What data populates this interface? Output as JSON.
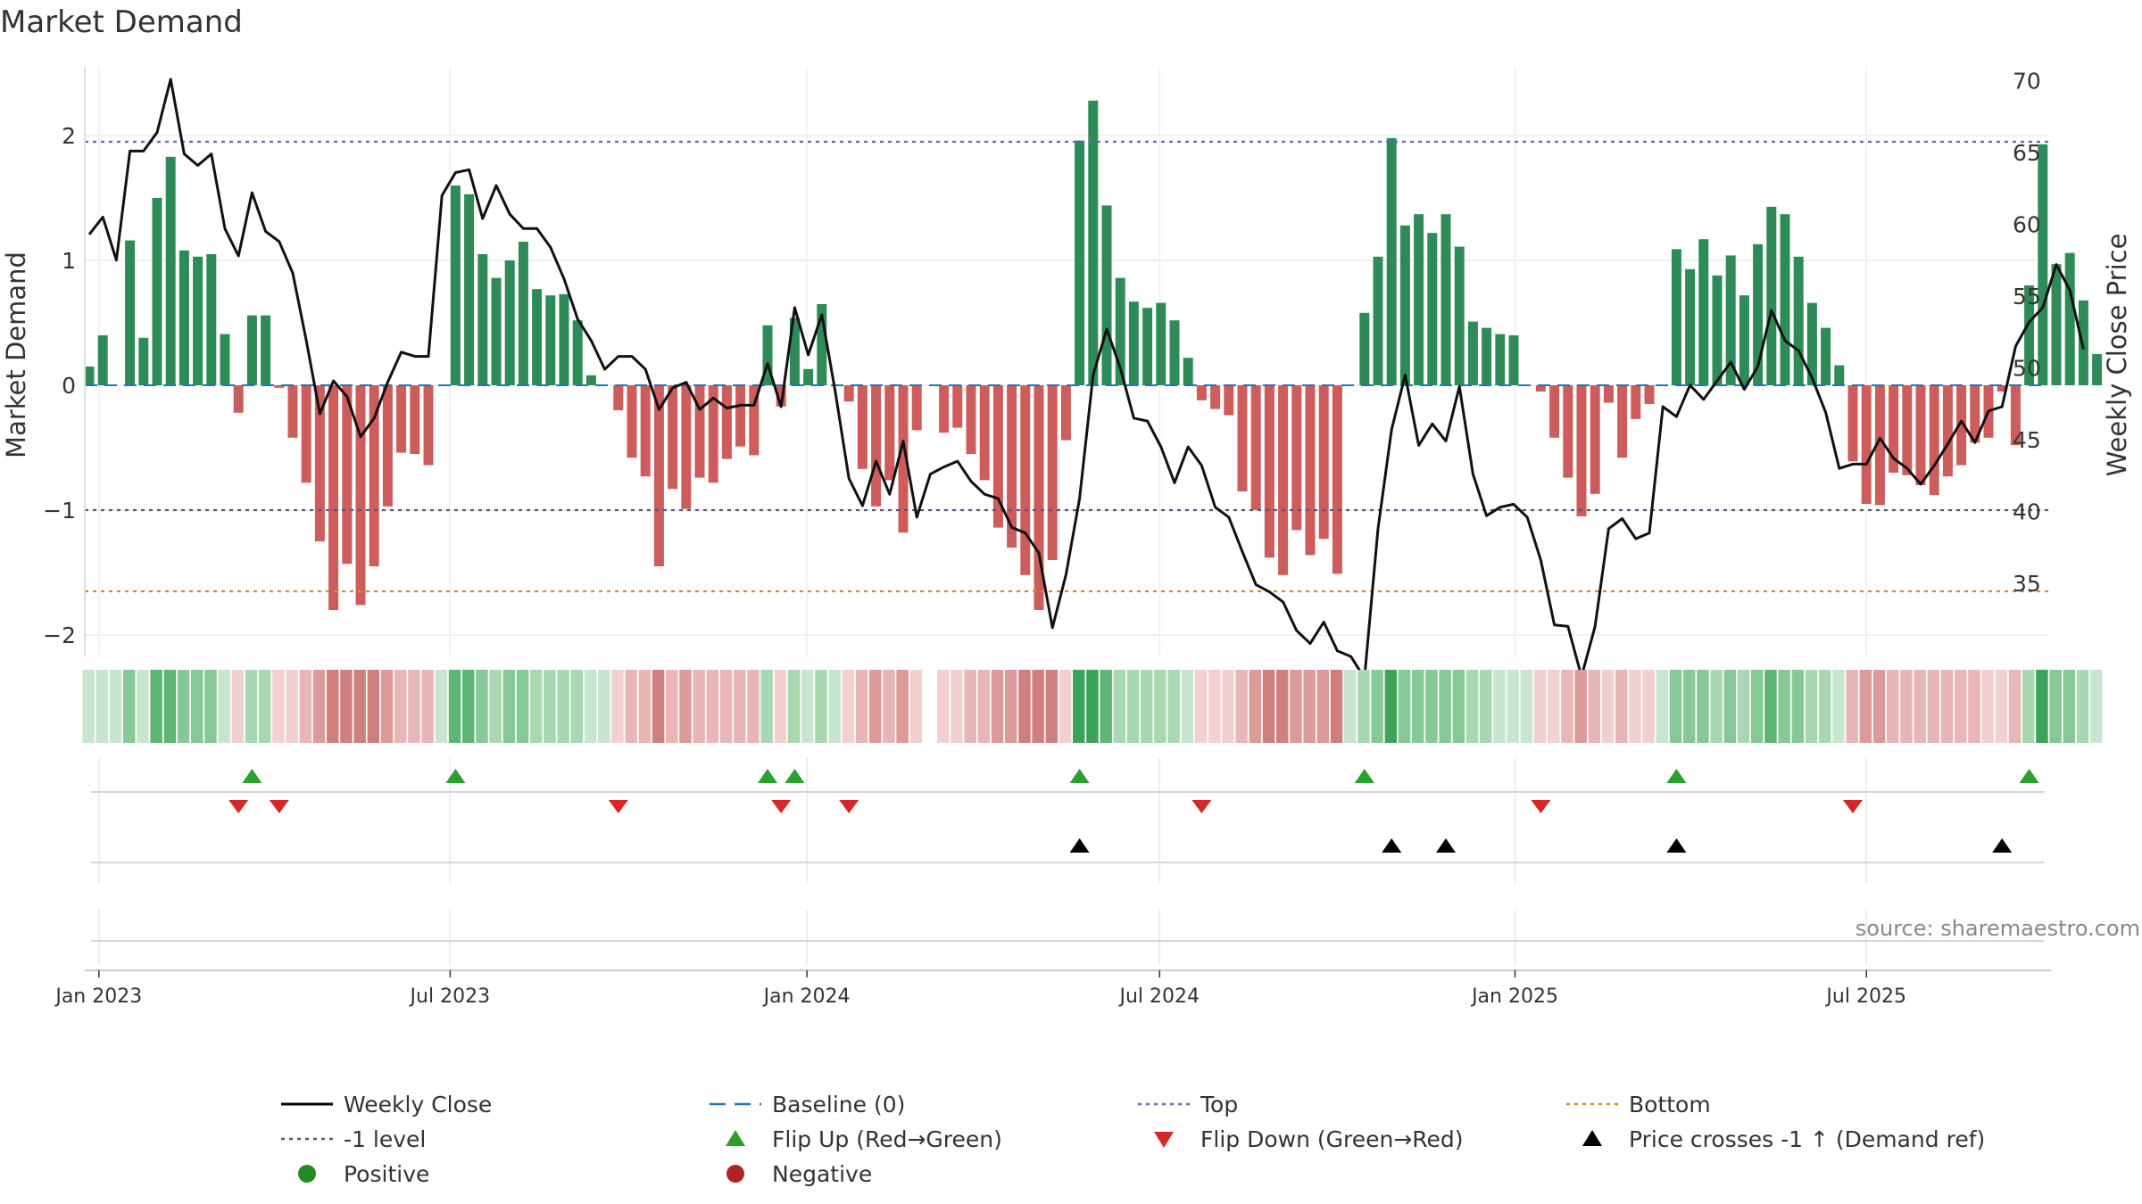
{
  "chart_data": {
    "type": "bar",
    "title": "Market Demand",
    "ylabel": "Market Demand",
    "y2label": "Weekly Close Price",
    "source": "source: sharemaestro.com",
    "ylim": [
      -2.2,
      2.5
    ],
    "y2lim": [
      31,
      71
    ],
    "yticks": [
      -2,
      -1,
      0,
      1,
      2
    ],
    "ytick_labels": [
      "−2",
      "−1",
      "0",
      "1",
      "2"
    ],
    "y2ticks": [
      35,
      40,
      45,
      50,
      55,
      60,
      65,
      70
    ],
    "x_start": "2023-01-01",
    "week_spacing_days": 7,
    "xticks": [
      {
        "label": "Jan 2023",
        "week": 0.71
      },
      {
        "label": "Jul 2023",
        "week": 26.6
      },
      {
        "label": "Jan 2024",
        "week": 52.9
      },
      {
        "label": "Jul 2024",
        "week": 78.9
      },
      {
        "label": "Jan 2025",
        "week": 105.1
      },
      {
        "label": "Jul 2025",
        "week": 131.0
      }
    ],
    "levels": {
      "top": 1.95,
      "minus_one": -1.0,
      "bottom": -1.65,
      "baseline": 0
    },
    "demand": [
      0.15,
      0.4,
      0,
      1.16,
      0.38,
      1.5,
      1.83,
      1.08,
      1.03,
      1.05,
      0.41,
      -0.22,
      0.56,
      0.56,
      -0.02,
      -0.42,
      -0.78,
      -1.25,
      -1.8,
      -1.43,
      -1.76,
      -1.45,
      -0.97,
      -0.54,
      -0.55,
      -0.64,
      0,
      1.6,
      1.53,
      1.05,
      0.86,
      1.0,
      1.15,
      0.77,
      0.72,
      0.73,
      0.52,
      0.08,
      0,
      -0.2,
      -0.58,
      -0.73,
      -1.45,
      -0.83,
      -0.99,
      -0.74,
      -0.78,
      -0.59,
      -0.49,
      -0.56,
      0.48,
      -0.17,
      0.54,
      0.13,
      0.65,
      0,
      -0.13,
      -0.67,
      -0.97,
      -0.76,
      -1.18,
      -0.36,
      0,
      -0.38,
      -0.34,
      -0.55,
      -0.76,
      -1.14,
      -1.3,
      -1.52,
      -1.8,
      -1.4,
      -0.44,
      1.96,
      2.28,
      1.44,
      0.86,
      0.67,
      0.62,
      0.66,
      0.52,
      0.22,
      -0.12,
      -0.19,
      -0.24,
      -0.85,
      -1.0,
      -1.38,
      -1.52,
      -1.16,
      -1.36,
      -1.23,
      -1.51,
      0,
      0.58,
      1.03,
      1.98,
      1.28,
      1.37,
      1.22,
      1.37,
      1.11,
      0.51,
      0.46,
      0.41,
      0.4,
      0,
      -0.05,
      -0.42,
      -0.74,
      -1.05,
      -0.87,
      -0.14,
      -0.58,
      -0.27,
      -0.15,
      0,
      1.09,
      0.93,
      1.17,
      0.88,
      1.04,
      0.72,
      1.13,
      1.43,
      1.37,
      1.03,
      0.66,
      0.46,
      0.16,
      -0.61,
      -0.95,
      -0.96,
      -0.7,
      -0.72,
      -0.8,
      -0.88,
      -0.73,
      -0.64,
      -0.46,
      -0.42,
      -0.05,
      -0.48,
      0.8,
      1.93,
      0.97,
      1.06,
      0.68,
      0.25
    ],
    "weekly_close": [
      59.3,
      60.5,
      57.5,
      65.1,
      65.1,
      66.4,
      70.1,
      64.9,
      64.1,
      64.9,
      59.7,
      57.8,
      62.2,
      59.5,
      58.8,
      56.6,
      51.9,
      46.8,
      49.1,
      48.0,
      45.2,
      46.5,
      49.0,
      51.1,
      50.8,
      50.8,
      62.0,
      63.6,
      63.8,
      60.4,
      62.7,
      60.7,
      59.7,
      59.7,
      58.4,
      56.2,
      53.4,
      51.9,
      49.9,
      50.8,
      50.8,
      49.9,
      47.1,
      48.6,
      49.0,
      47.1,
      47.9,
      47.2,
      47.4,
      47.4,
      50.3,
      47.3,
      54.2,
      50.9,
      53.7,
      48.3,
      42.3,
      40.4,
      43.5,
      41.2,
      44.9,
      39.6,
      42.6,
      43.1,
      43.5,
      42.1,
      41.2,
      40.9,
      38.9,
      38.5,
      37.1,
      31.9,
      35.6,
      40.9,
      49.5,
      52.7,
      50.0,
      46.5,
      46.3,
      44.5,
      42.0,
      44.5,
      43.2,
      40.3,
      39.6,
      37.2,
      34.9,
      34.4,
      33.7,
      31.7,
      30.8,
      32.3,
      30.3,
      29.9,
      28.4,
      38.8,
      45.7,
      49.5,
      44.6,
      46.1,
      44.9,
      48.7,
      42.6,
      39.7,
      40.3,
      40.5,
      39.6,
      36.6,
      32.1,
      32.0,
      28.5,
      32.0,
      38.8,
      39.5,
      38.1,
      38.5,
      47.3,
      46.6,
      48.8,
      47.8,
      49.1,
      50.4,
      48.5,
      50.1,
      54.0,
      51.9,
      51.2,
      49.3,
      46.9,
      43.0,
      43.3,
      43.3,
      45.1,
      43.7,
      43.0,
      41.9,
      43.2,
      44.7,
      46.3,
      44.8,
      47.0,
      47.3,
      51.5,
      53.2,
      54.2,
      57.2,
      55.4,
      51.3
    ],
    "legend": [
      {
        "label": "Weekly Close",
        "kind": "line",
        "color": "#000000"
      },
      {
        "label": "Baseline (0)",
        "kind": "dash",
        "color": "#1f77b4"
      },
      {
        "label": "Top",
        "kind": "dot",
        "color": "#6666bb"
      },
      {
        "label": "Bottom",
        "kind": "dot",
        "color": "#e08a1e"
      },
      {
        "label": "-1 level",
        "kind": "dot",
        "color": "#555577"
      },
      {
        "label": "Flip Up (Red→Green)",
        "kind": "tri-up",
        "color": "#2ca02c"
      },
      {
        "label": "Flip Down (Green→Red)",
        "kind": "tri-down",
        "color": "#d62728"
      },
      {
        "label": "Price crosses -1 ↑ (Demand ref)",
        "kind": "tri-up",
        "color": "#000000"
      },
      {
        "label": "Positive",
        "kind": "circle",
        "color": "#228b22"
      },
      {
        "label": "Negative",
        "kind": "circle",
        "color": "#b22222"
      }
    ],
    "colors": {
      "positive": "#2e8b57",
      "negative": "#cd5c5c",
      "price": "#111111"
    }
  }
}
